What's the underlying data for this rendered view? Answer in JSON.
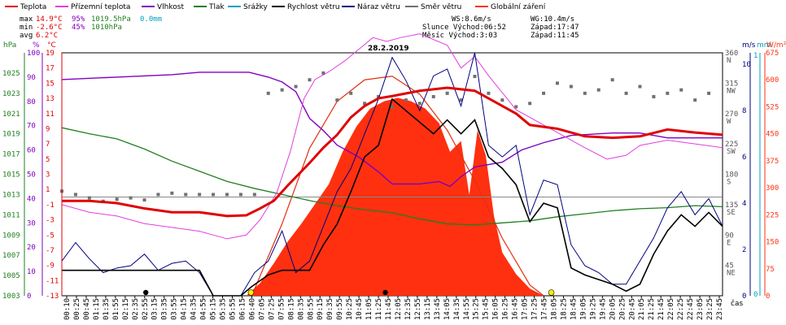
{
  "chart_data": {
    "type": "line",
    "title": "28.2.2019",
    "legend": [
      {
        "name": "Teplota",
        "color": "#e00000"
      },
      {
        "name": "Přízemní teplota",
        "color": "#e040e0"
      },
      {
        "name": "Vlhkost",
        "color": "#8000c0"
      },
      {
        "name": "Tlak",
        "color": "#208020"
      },
      {
        "name": "Srážky",
        "color": "#00a0c0"
      },
      {
        "name": "Rychlost větru",
        "color": "#000000"
      },
      {
        "name": "Náraz větru",
        "color": "#000080"
      },
      {
        "name": "Směr větru",
        "color": "#707070"
      },
      {
        "name": "Globální záření",
        "color": "#ff3010"
      }
    ],
    "stats": {
      "max": {
        "label": "max",
        "temp": "14.9°C",
        "hum": "95%",
        "press": "1019.5hPa",
        "rain": "0.0mm"
      },
      "min": {
        "label": "min",
        "temp": "-2.6°C",
        "hum": "45%",
        "press": "1010hPa"
      },
      "avg": {
        "label": "avg",
        "temp": "6.2°C"
      }
    },
    "wind_info": {
      "ws": "WS:8.6m/s",
      "wg": "WG:10.4m/s"
    },
    "sun_info": {
      "rise": "Slunce Východ:06:52",
      "set": "Západ:17:47"
    },
    "moon_info": {
      "rise": "Měsíc  Východ:3:03",
      "set": "Západ:11:45"
    },
    "xlabel": "čas",
    "x_ticks": [
      "00:10",
      "00:25",
      "00:45",
      "01:15",
      "01:35",
      "01:55",
      "02:15",
      "02:35",
      "02:55",
      "03:15",
      "03:35",
      "03:55",
      "04:15",
      "04:35",
      "04:55",
      "05:15",
      "05:35",
      "05:55",
      "06:15",
      "06:40",
      "07:05",
      "07:25",
      "07:55",
      "08:15",
      "08:35",
      "08:55",
      "09:15",
      "09:35",
      "09:55",
      "10:25",
      "10:45",
      "11:05",
      "11:25",
      "11:45",
      "12:05",
      "12:35",
      "12:55",
      "13:15",
      "13:45",
      "14:05",
      "14:35",
      "14:55",
      "15:25",
      "15:45",
      "16:05",
      "16:25",
      "16:45",
      "17:05",
      "17:25",
      "17:45",
      "18:05",
      "18:25",
      "18:45",
      "19:05",
      "19:25",
      "19:45",
      "20:05",
      "20:25",
      "20:45",
      "21:05",
      "21:25",
      "21:45",
      "22:05",
      "22:25",
      "22:45",
      "23:05",
      "23:25",
      "23:45"
    ],
    "axes": {
      "hpa": {
        "unit": "hPa",
        "ticks": [
          "1025",
          "1023",
          "1021",
          "1019",
          "1017",
          "1015",
          "1013",
          "1011",
          "1009",
          "1007",
          "1005",
          "1003"
        ],
        "range": [
          1003,
          1027
        ]
      },
      "pct": {
        "unit": "%",
        "ticks": [
          "100",
          "90",
          "80",
          "70",
          "60",
          "50",
          "40",
          "30",
          "20",
          "10",
          "0"
        ],
        "range": [
          0,
          100
        ]
      },
      "temp": {
        "unit": "°C",
        "ticks": [
          "19",
          "17",
          "15",
          "13",
          "11",
          "9",
          "7",
          "5",
          "3",
          "1",
          "-1",
          "-3",
          "-5",
          "-7",
          "-9",
          "-11",
          "-13"
        ],
        "range": [
          -13,
          19
        ]
      },
      "dir": {
        "unit": "",
        "ticks": [
          "360",
          "315",
          "270",
          "225",
          "180",
          "135",
          "90",
          "45"
        ],
        "labels": [
          "N",
          "NW",
          "W",
          "SW",
          "S",
          "SE",
          "E",
          "NE"
        ]
      },
      "ms": {
        "unit": "m/s",
        "ticks": [
          "10",
          "8",
          "6",
          "4",
          "2",
          "0"
        ],
        "range": [
          0,
          10.5
        ]
      },
      "mm": {
        "unit": "mm",
        "ticks": [
          "1",
          "0"
        ]
      },
      "rad": {
        "unit": "W/m²",
        "ticks": [
          "675",
          "600",
          "525",
          "450",
          "375",
          "300",
          "225",
          "150",
          "75",
          "0"
        ],
        "range": [
          0,
          675
        ]
      }
    },
    "series": {
      "temperature_c": [
        [
          0,
          -0.5
        ],
        [
          1,
          -0.5
        ],
        [
          2,
          -0.8
        ],
        [
          3,
          -1.5
        ],
        [
          4,
          -2.0
        ],
        [
          5,
          -2.0
        ],
        [
          6,
          -2.5
        ],
        [
          6.7,
          -2.4
        ],
        [
          7.2,
          -1.5
        ],
        [
          7.7,
          -0.5
        ],
        [
          8.2,
          1.5
        ],
        [
          9,
          4.5
        ],
        [
          9.5,
          6.5
        ],
        [
          10,
          8.2
        ],
        [
          10.5,
          10.5
        ],
        [
          11,
          12.0
        ],
        [
          11.5,
          13.0
        ],
        [
          12,
          13.3
        ],
        [
          13,
          14.0
        ],
        [
          14,
          14.4
        ],
        [
          15,
          14.0
        ],
        [
          16,
          12.0
        ],
        [
          16.5,
          11.0
        ],
        [
          17,
          9.5
        ],
        [
          18,
          9.0
        ],
        [
          19,
          8.0
        ],
        [
          20,
          7.8
        ],
        [
          21,
          8.0
        ],
        [
          22,
          8.9
        ],
        [
          23,
          8.5
        ],
        [
          24,
          8.2
        ]
      ],
      "ground_temp_c": [
        [
          0,
          -1.0
        ],
        [
          1,
          -2.0
        ],
        [
          2,
          -2.5
        ],
        [
          3,
          -3.5
        ],
        [
          4,
          -4.0
        ],
        [
          5,
          -4.5
        ],
        [
          6,
          -5.5
        ],
        [
          6.7,
          -5.0
        ],
        [
          7.2,
          -3.0
        ],
        [
          7.8,
          0.5
        ],
        [
          8.3,
          6.0
        ],
        [
          8.8,
          13.0
        ],
        [
          9.2,
          15.5
        ],
        [
          9.7,
          16.5
        ],
        [
          10.3,
          18.0
        ],
        [
          10.8,
          19.5
        ],
        [
          11.3,
          21.0
        ],
        [
          11.8,
          20.5
        ],
        [
          12.3,
          21.0
        ],
        [
          13,
          21.5
        ],
        [
          14,
          20.0
        ],
        [
          14.5,
          17.0
        ],
        [
          15,
          18.5
        ],
        [
          15.5,
          16.0
        ],
        [
          16.5,
          11.5
        ],
        [
          17.5,
          9.5
        ],
        [
          18,
          8.5
        ],
        [
          19,
          6.5
        ],
        [
          19.8,
          5.0
        ],
        [
          20.5,
          5.5
        ],
        [
          21,
          6.8
        ],
        [
          22,
          7.5
        ],
        [
          23,
          7.0
        ],
        [
          24,
          6.5
        ]
      ],
      "humidity_pct": [
        [
          0,
          89
        ],
        [
          2,
          90
        ],
        [
          4,
          91
        ],
        [
          5,
          92
        ],
        [
          6,
          92
        ],
        [
          6.8,
          92
        ],
        [
          7.5,
          90
        ],
        [
          8,
          88
        ],
        [
          8.5,
          84
        ],
        [
          9,
          73
        ],
        [
          9.5,
          68
        ],
        [
          10,
          62
        ],
        [
          10.8,
          57
        ],
        [
          11.5,
          51
        ],
        [
          12,
          46
        ],
        [
          13,
          46
        ],
        [
          13.7,
          47
        ],
        [
          14.1,
          45
        ],
        [
          14.5,
          49
        ],
        [
          15,
          53
        ],
        [
          16,
          55
        ],
        [
          16.7,
          60
        ],
        [
          17.5,
          63
        ],
        [
          18.5,
          66
        ],
        [
          20,
          67
        ],
        [
          21,
          67
        ],
        [
          22,
          65
        ],
        [
          23,
          65
        ],
        [
          24,
          65
        ]
      ],
      "pressure_hpa": [
        [
          0,
          1019.6
        ],
        [
          1,
          1019.0
        ],
        [
          2,
          1018.5
        ],
        [
          3,
          1017.5
        ],
        [
          4,
          1016.3
        ],
        [
          5,
          1015.3
        ],
        [
          6,
          1014.3
        ],
        [
          7,
          1013.6
        ],
        [
          8,
          1013.0
        ],
        [
          9,
          1012.4
        ],
        [
          10,
          1011.9
        ],
        [
          11,
          1011.5
        ],
        [
          12,
          1011.2
        ],
        [
          13,
          1010.6
        ],
        [
          14,
          1010.1
        ],
        [
          15,
          1010.0
        ],
        [
          16,
          1010.2
        ],
        [
          17,
          1010.4
        ],
        [
          18,
          1010.8
        ],
        [
          19,
          1011.1
        ],
        [
          20,
          1011.4
        ],
        [
          21,
          1011.6
        ],
        [
          22,
          1011.7
        ],
        [
          23,
          1011.9
        ],
        [
          24,
          1011.8
        ]
      ],
      "wind_speed_ms": [
        [
          0,
          1.1
        ],
        [
          1,
          1.1
        ],
        [
          2,
          1.1
        ],
        [
          3,
          1.1
        ],
        [
          4,
          1.1
        ],
        [
          5,
          1.1
        ],
        [
          5.5,
          0
        ],
        [
          6.5,
          0
        ],
        [
          6.9,
          0.4
        ],
        [
          7.5,
          0.9
        ],
        [
          8,
          1.1
        ],
        [
          9,
          1.1
        ],
        [
          9.5,
          2.2
        ],
        [
          10,
          3.1
        ],
        [
          10.5,
          4.5
        ],
        [
          11,
          6.0
        ],
        [
          11.5,
          6.5
        ],
        [
          12,
          8.5
        ],
        [
          12.5,
          8.0
        ],
        [
          13,
          7.5
        ],
        [
          13.5,
          7.0
        ],
        [
          14,
          7.6
        ],
        [
          14.5,
          7.0
        ],
        [
          15,
          7.6
        ],
        [
          15.5,
          6.0
        ],
        [
          16,
          5.5
        ],
        [
          16.5,
          4.8
        ],
        [
          17,
          3.2
        ],
        [
          17.5,
          4.0
        ],
        [
          18,
          3.8
        ],
        [
          18.5,
          1.2
        ],
        [
          19,
          0.9
        ],
        [
          20,
          0.5
        ],
        [
          20.5,
          0.2
        ],
        [
          21,
          0.5
        ],
        [
          21.5,
          1.8
        ],
        [
          22,
          2.8
        ],
        [
          22.5,
          3.5
        ],
        [
          23,
          3.0
        ],
        [
          23.5,
          3.6
        ],
        [
          24,
          3.0
        ]
      ],
      "wind_gust_ms": [
        [
          0,
          1.5
        ],
        [
          0.5,
          2.3
        ],
        [
          1,
          1.6
        ],
        [
          1.5,
          1.0
        ],
        [
          2,
          1.2
        ],
        [
          2.5,
          1.3
        ],
        [
          3,
          1.8
        ],
        [
          3.5,
          1.1
        ],
        [
          4,
          1.4
        ],
        [
          4.5,
          1.5
        ],
        [
          5,
          1.0
        ],
        [
          5.5,
          0
        ],
        [
          6.5,
          0
        ],
        [
          7,
          1.0
        ],
        [
          7.5,
          1.5
        ],
        [
          8,
          2.8
        ],
        [
          8.5,
          1.0
        ],
        [
          9,
          1.5
        ],
        [
          9.5,
          3.0
        ],
        [
          10,
          4.5
        ],
        [
          10.5,
          5.5
        ],
        [
          11,
          7.0
        ],
        [
          11.5,
          8.5
        ],
        [
          12,
          10.3
        ],
        [
          12.5,
          9.3
        ],
        [
          13,
          8.0
        ],
        [
          13.5,
          9.5
        ],
        [
          14,
          9.8
        ],
        [
          14.5,
          8.2
        ],
        [
          15,
          10.5
        ],
        [
          15.5,
          6.5
        ],
        [
          16,
          6.0
        ],
        [
          16.5,
          6.5
        ],
        [
          17,
          3.5
        ],
        [
          17.5,
          5.0
        ],
        [
          18,
          4.8
        ],
        [
          18.5,
          2.2
        ],
        [
          19,
          1.3
        ],
        [
          19.5,
          1.0
        ],
        [
          20,
          0.5
        ],
        [
          20.5,
          0.5
        ],
        [
          21,
          1.5
        ],
        [
          21.5,
          2.5
        ],
        [
          22,
          3.8
        ],
        [
          22.5,
          4.5
        ],
        [
          23,
          3.5
        ],
        [
          23.5,
          4.2
        ],
        [
          24,
          3.0
        ]
      ],
      "wind_dir_deg": [
        [
          0,
          155
        ],
        [
          0.5,
          150
        ],
        [
          1,
          145
        ],
        [
          1.5,
          140
        ],
        [
          2,
          143
        ],
        [
          2.5,
          145
        ],
        [
          3,
          142
        ],
        [
          3.5,
          150
        ],
        [
          4,
          152
        ],
        [
          4.5,
          150
        ],
        [
          5,
          150
        ],
        [
          5.5,
          150
        ],
        [
          6,
          150
        ],
        [
          6.5,
          150
        ],
        [
          7,
          150
        ],
        [
          7.5,
          300
        ],
        [
          8,
          305
        ],
        [
          8.5,
          310
        ],
        [
          9,
          320
        ],
        [
          9.5,
          330
        ],
        [
          10,
          290
        ],
        [
          10.5,
          300
        ],
        [
          11,
          285
        ],
        [
          11.5,
          295
        ],
        [
          12,
          280
        ],
        [
          12.5,
          290
        ],
        [
          13,
          285
        ],
        [
          13.5,
          295
        ],
        [
          14,
          300
        ],
        [
          14.5,
          290
        ],
        [
          15,
          325
        ],
        [
          15.5,
          300
        ],
        [
          16,
          290
        ],
        [
          16.5,
          280
        ],
        [
          17,
          285
        ],
        [
          17.5,
          300
        ],
        [
          18,
          315
        ],
        [
          18.5,
          310
        ],
        [
          19,
          300
        ],
        [
          19.5,
          305
        ],
        [
          20,
          320
        ],
        [
          20.5,
          300
        ],
        [
          21,
          310
        ],
        [
          21.5,
          295
        ],
        [
          22,
          300
        ],
        [
          22.5,
          305
        ],
        [
          23,
          290
        ],
        [
          23.5,
          300
        ]
      ],
      "radiation_wm2": [
        [
          6.7,
          0
        ],
        [
          7.2,
          35
        ],
        [
          7.7,
          90
        ],
        [
          8.2,
          150
        ],
        [
          8.7,
          200
        ],
        [
          9.2,
          255
        ],
        [
          9.7,
          310
        ],
        [
          10.2,
          400
        ],
        [
          10.7,
          470
        ],
        [
          11.2,
          520
        ],
        [
          11.7,
          540
        ],
        [
          12.2,
          550
        ],
        [
          12.7,
          540
        ],
        [
          13.2,
          520
        ],
        [
          13.7,
          480
        ],
        [
          14.1,
          400
        ],
        [
          14.5,
          430
        ],
        [
          14.8,
          280
        ],
        [
          15.1,
          460
        ],
        [
          15.4,
          390
        ],
        [
          15.7,
          220
        ],
        [
          16,
          120
        ],
        [
          16.5,
          60
        ],
        [
          17,
          20
        ],
        [
          17.5,
          0
        ]
      ],
      "clear_sky_radiation_wm2": [
        [
          6.9,
          0
        ],
        [
          8,
          200
        ],
        [
          9,
          410
        ],
        [
          10,
          540
        ],
        [
          11,
          600
        ],
        [
          12,
          610
        ],
        [
          13,
          560
        ],
        [
          14,
          460
        ],
        [
          15,
          320
        ],
        [
          16,
          160
        ],
        [
          17,
          30
        ],
        [
          17.5,
          0
        ]
      ],
      "markers": {
        "sunrise_h": 6.87,
        "sunset_h": 17.78,
        "moonset_h": 11.75,
        "moonrise_h": 3.05
      }
    }
  }
}
